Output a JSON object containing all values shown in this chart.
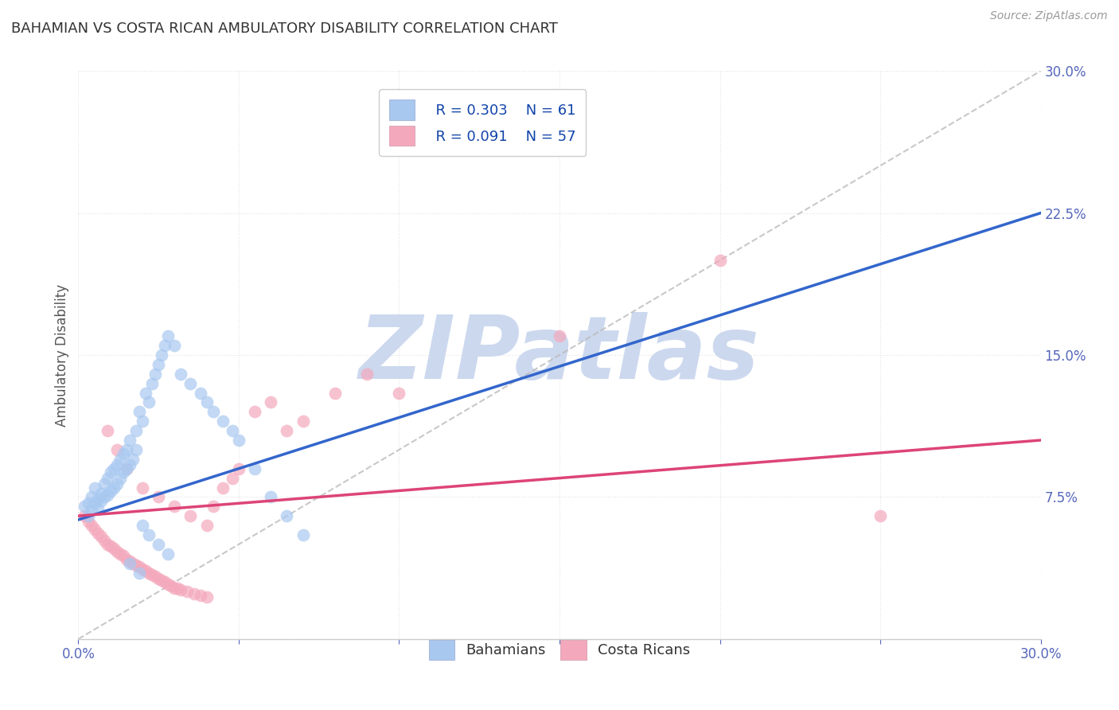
{
  "title": "BAHAMIAN VS COSTA RICAN AMBULATORY DISABILITY CORRELATION CHART",
  "source": "Source: ZipAtlas.com",
  "ylabel": "Ambulatory Disability",
  "xmin": 0.0,
  "xmax": 0.3,
  "ymin": 0.0,
  "ymax": 0.3,
  "blue_R": 0.303,
  "blue_N": 61,
  "pink_R": 0.091,
  "pink_N": 57,
  "blue_color": "#a8c8f0",
  "pink_color": "#f4a8bc",
  "blue_line_color": "#3366cc",
  "pink_line_color": "#dd4477",
  "dash_color": "#bbbbbb",
  "background_color": "#ffffff",
  "grid_color": "#e0e0e0",
  "title_color": "#333333",
  "axis_label_color": "#555555",
  "tick_color": "#5566bb",
  "watermark": "ZIPatlas",
  "watermark_color": "#ccd8ee",
  "blue_scatter_x": [
    0.002,
    0.003,
    0.003,
    0.004,
    0.004,
    0.005,
    0.005,
    0.006,
    0.006,
    0.007,
    0.007,
    0.008,
    0.008,
    0.009,
    0.009,
    0.01,
    0.01,
    0.011,
    0.011,
    0.012,
    0.012,
    0.013,
    0.013,
    0.014,
    0.014,
    0.015,
    0.015,
    0.016,
    0.016,
    0.017,
    0.018,
    0.018,
    0.019,
    0.02,
    0.021,
    0.022,
    0.023,
    0.024,
    0.025,
    0.026,
    0.027,
    0.028,
    0.03,
    0.032,
    0.035,
    0.038,
    0.04,
    0.042,
    0.045,
    0.048,
    0.05,
    0.055,
    0.06,
    0.065,
    0.07,
    0.02,
    0.022,
    0.025,
    0.028,
    0.016,
    0.019
  ],
  "blue_scatter_y": [
    0.07,
    0.065,
    0.072,
    0.068,
    0.075,
    0.072,
    0.08,
    0.069,
    0.074,
    0.073,
    0.077,
    0.075,
    0.082,
    0.076,
    0.085,
    0.078,
    0.088,
    0.08,
    0.09,
    0.082,
    0.092,
    0.085,
    0.095,
    0.088,
    0.098,
    0.09,
    0.1,
    0.092,
    0.105,
    0.095,
    0.1,
    0.11,
    0.12,
    0.115,
    0.13,
    0.125,
    0.135,
    0.14,
    0.145,
    0.15,
    0.155,
    0.16,
    0.155,
    0.14,
    0.135,
    0.13,
    0.125,
    0.12,
    0.115,
    0.11,
    0.105,
    0.09,
    0.075,
    0.065,
    0.055,
    0.06,
    0.055,
    0.05,
    0.045,
    0.04,
    0.035
  ],
  "pink_scatter_x": [
    0.002,
    0.003,
    0.004,
    0.005,
    0.006,
    0.007,
    0.008,
    0.009,
    0.01,
    0.011,
    0.012,
    0.013,
    0.014,
    0.015,
    0.016,
    0.017,
    0.018,
    0.019,
    0.02,
    0.021,
    0.022,
    0.023,
    0.024,
    0.025,
    0.026,
    0.027,
    0.028,
    0.029,
    0.03,
    0.031,
    0.032,
    0.034,
    0.036,
    0.038,
    0.04,
    0.042,
    0.045,
    0.048,
    0.05,
    0.055,
    0.06,
    0.065,
    0.07,
    0.08,
    0.09,
    0.1,
    0.15,
    0.2,
    0.25,
    0.009,
    0.012,
    0.015,
    0.02,
    0.025,
    0.03,
    0.035,
    0.04
  ],
  "pink_scatter_y": [
    0.065,
    0.062,
    0.06,
    0.058,
    0.056,
    0.054,
    0.052,
    0.05,
    0.049,
    0.048,
    0.046,
    0.045,
    0.044,
    0.042,
    0.041,
    0.04,
    0.039,
    0.038,
    0.037,
    0.036,
    0.035,
    0.034,
    0.033,
    0.032,
    0.031,
    0.03,
    0.029,
    0.028,
    0.027,
    0.027,
    0.026,
    0.025,
    0.024,
    0.023,
    0.022,
    0.07,
    0.08,
    0.085,
    0.09,
    0.12,
    0.125,
    0.11,
    0.115,
    0.13,
    0.14,
    0.13,
    0.16,
    0.2,
    0.065,
    0.11,
    0.1,
    0.09,
    0.08,
    0.075,
    0.07,
    0.065,
    0.06
  ],
  "blue_line_x0": 0.0,
  "blue_line_x1": 0.3,
  "blue_line_y0": 0.063,
  "blue_line_y1": 0.225,
  "pink_line_x0": 0.0,
  "pink_line_x1": 0.3,
  "pink_line_y0": 0.065,
  "pink_line_y1": 0.105
}
